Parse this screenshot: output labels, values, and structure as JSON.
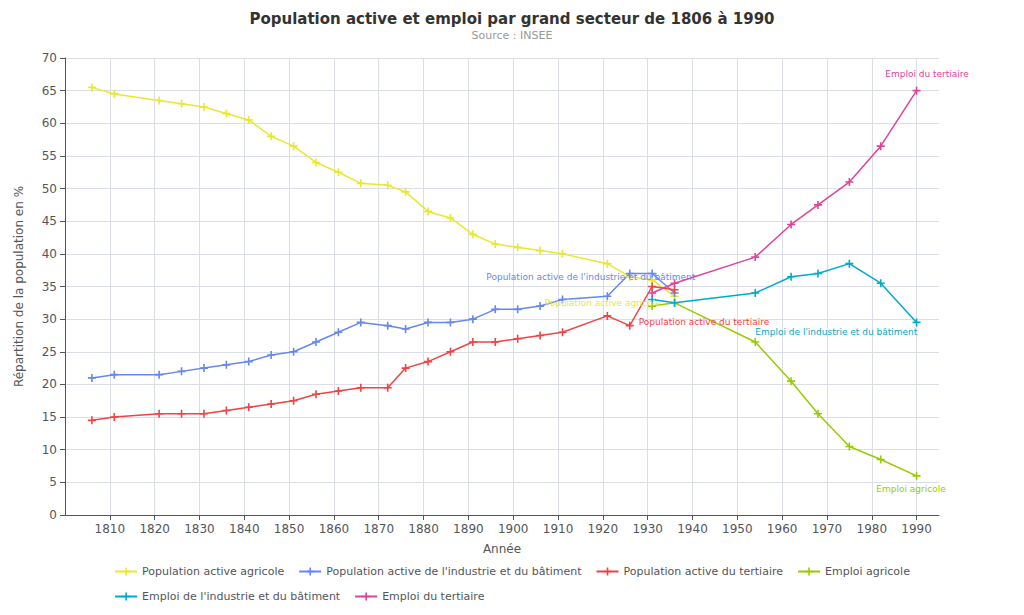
{
  "chart_data": {
    "type": "line",
    "title": "Population active et emploi par grand secteur de 1806 à 1990",
    "subtitle": "Source : INSEE",
    "xlabel": "Année",
    "ylabel": "Répartition de la population en %",
    "xlim": [
      1800,
      1995
    ],
    "ylim": [
      0,
      70
    ],
    "xticks": [
      1810,
      1820,
      1830,
      1840,
      1850,
      1860,
      1870,
      1880,
      1890,
      1900,
      1910,
      1920,
      1930,
      1940,
      1950,
      1960,
      1970,
      1980,
      1990
    ],
    "yticks": [
      0,
      5,
      10,
      15,
      20,
      25,
      30,
      35,
      40,
      45,
      50,
      55,
      60,
      65,
      70
    ],
    "grid": true,
    "legend": "bottom",
    "marker": "+",
    "series": [
      {
        "name": "Population active agricole",
        "color": "#e8e832",
        "x": [
          1806,
          1811,
          1821,
          1826,
          1831,
          1836,
          1841,
          1846,
          1851,
          1856,
          1861,
          1866,
          1872,
          1876,
          1881,
          1886,
          1891,
          1896,
          1901,
          1906,
          1911,
          1921,
          1926,
          1931,
          1936
        ],
        "values": [
          65.5,
          64.5,
          63.5,
          63.0,
          62.5,
          61.5,
          60.5,
          58.0,
          56.5,
          54.0,
          52.5,
          50.8,
          50.5,
          49.5,
          46.5,
          45.5,
          43.0,
          41.5,
          41.0,
          40.5,
          40.0,
          38.5,
          36.5,
          36.0,
          33.5
        ]
      },
      {
        "name": "Population active de l'industrie et du bâtiment",
        "color": "#6688ee",
        "x": [
          1806,
          1811,
          1821,
          1826,
          1831,
          1836,
          1841,
          1846,
          1851,
          1856,
          1861,
          1866,
          1872,
          1876,
          1881,
          1886,
          1891,
          1896,
          1901,
          1906,
          1911,
          1921,
          1926,
          1931,
          1936
        ],
        "values": [
          21.0,
          21.5,
          21.5,
          22.0,
          22.5,
          23.0,
          23.5,
          24.5,
          25.0,
          26.5,
          28.0,
          29.5,
          29.0,
          28.5,
          29.5,
          29.5,
          30.0,
          31.5,
          31.5,
          32.0,
          33.0,
          33.5,
          37.0,
          37.0,
          34.0
        ]
      },
      {
        "name": "Population active du tertiaire",
        "color": "#ee4444",
        "x": [
          1806,
          1811,
          1821,
          1826,
          1831,
          1836,
          1841,
          1846,
          1851,
          1856,
          1861,
          1866,
          1872,
          1876,
          1881,
          1886,
          1891,
          1896,
          1901,
          1906,
          1911,
          1921,
          1926,
          1931,
          1936
        ],
        "values": [
          14.5,
          15.0,
          15.5,
          15.5,
          15.5,
          16.0,
          16.5,
          17.0,
          17.5,
          18.5,
          19.0,
          19.5,
          19.5,
          22.5,
          23.5,
          25.0,
          26.5,
          26.5,
          27.0,
          27.5,
          28.0,
          30.5,
          29.0,
          35.0,
          34.5
        ]
      },
      {
        "name": "Emploi agricole",
        "color": "#99cc00",
        "x": [
          1931,
          1936,
          1954,
          1962,
          1968,
          1975,
          1982,
          1990
        ],
        "values": [
          32.0,
          32.5,
          26.5,
          20.5,
          15.5,
          10.5,
          8.5,
          6.0
        ]
      },
      {
        "name": "Emploi de l'industrie et du bâtiment",
        "color": "#00aacc",
        "x": [
          1931,
          1936,
          1954,
          1962,
          1968,
          1975,
          1982,
          1990
        ],
        "values": [
          33.0,
          32.5,
          34.0,
          36.5,
          37.0,
          38.5,
          35.5,
          29.5
        ]
      },
      {
        "name": "Emploi du tertiaire",
        "color": "#dd4499",
        "x": [
          1931,
          1936,
          1954,
          1962,
          1968,
          1975,
          1982,
          1990
        ],
        "values": [
          34.0,
          35.5,
          39.5,
          44.5,
          47.5,
          51.0,
          56.5,
          65.0
        ]
      }
    ],
    "annotations": [
      {
        "text": "Population active de l'industrie et du bâtiment",
        "x": 1894,
        "y": 36.5,
        "color": "#6688ee"
      },
      {
        "text": "Population active agricole",
        "x": 1907,
        "y": 32.5,
        "color": "#e8e832"
      },
      {
        "text": "Population active du tertiaire",
        "x": 1928,
        "y": 29.5,
        "color": "#ee4444"
      },
      {
        "text": "Emploi du tertiaire",
        "x": 1983,
        "y": 67.5,
        "color": "#dd4499"
      },
      {
        "text": "Emploi de l'industrie et du bâtiment",
        "x": 1954,
        "y": 28.0,
        "color": "#00aacc"
      },
      {
        "text": "Emploi agricole",
        "x": 1981,
        "y": 4.0,
        "color": "#99cc00"
      }
    ]
  }
}
